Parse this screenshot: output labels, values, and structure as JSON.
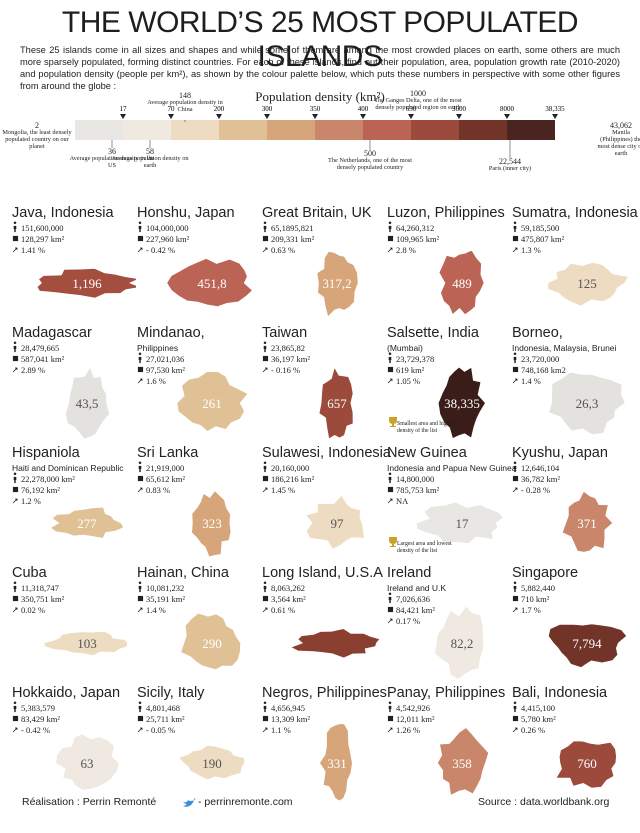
{
  "header": {
    "title": "THE WORLD’S 25 MOST POPULATED ISLANDS",
    "intro": "These 25 islands come in all sizes and shapes and while some of them are among the most crowded places on earth, some others are much more sparsely populated, forming distinct countries. For each of these islands, find out their population, area, population growth rate (2010-2020) and population density (people per km²), as shown by the colour palette below, which puts these numbers in perspective with some other figures from around the globe :"
  },
  "scale": {
    "title": "Population density (km²)",
    "ticks": [
      "17",
      "70",
      "200",
      "300",
      "350",
      "400",
      "650",
      "3000",
      "8000",
      "38,335"
    ],
    "colors": [
      "#e9e7e4",
      "#efe9e1",
      "#eedcc2",
      "#e0c095",
      "#d6a67a",
      "#c9866a",
      "#bb6456",
      "#9c4a3c",
      "#723428",
      "#4a2420"
    ],
    "annotations": [
      {
        "value": "2",
        "text": "Mongolia, the least densely populated country on our planet"
      },
      {
        "value": "148",
        "text": "Average population density in China"
      },
      {
        "value": "1000",
        "text": "The Ganges Delta, one of the most densely populated region on earth"
      },
      {
        "value": "36",
        "text": "Average population density in the US"
      },
      {
        "value": "58",
        "text": "Average population density on earth"
      },
      {
        "value": "500",
        "text": "The Netherlands, one of the most densely populated country"
      },
      {
        "value": "22,544",
        "text": "Paris (inner city)"
      },
      {
        "value": "43,062",
        "text": "Manila (Philippines) the most dense city on earth"
      }
    ]
  },
  "islands": [
    {
      "name": "Java, Indonesia",
      "population": "151,600,000",
      "area": "128,297 km²",
      "growth": "1.41 %",
      "density": "1,196",
      "color": "#a44e3f"
    },
    {
      "name": "Honshu, Japan",
      "population": "104,000,000",
      "area": "227,960 km²",
      "growth": "- 0.42 %",
      "density": "451,8",
      "color": "#bb6456"
    },
    {
      "name": "Great Britain, UK",
      "population": "65,1895,821",
      "area": "209,331 km²",
      "growth": "0.63 %",
      "density": "317,2",
      "color": "#d6a67a"
    },
    {
      "name": "Luzon, Philippines",
      "population": "64,260,312",
      "area": "109,965 km²",
      "growth": "2.8 %",
      "density": "489",
      "color": "#bb6456"
    },
    {
      "name": "Sumatra, Indonesia",
      "population": "59,185,500",
      "area": "475,807 km²",
      "growth": "1.3 %",
      "density": "125",
      "color": "#eedcc2"
    },
    {
      "name": "Madagascar",
      "population": "28,479,665",
      "area": "587,041 km²",
      "growth": "2.89 %",
      "density": "43,5",
      "color": "#e4e2df"
    },
    {
      "name": "Mindanao,",
      "subtitle": "Philippines",
      "population": "27,021,036",
      "area": "97,530 km²",
      "growth": "1.6 %",
      "density": "261",
      "color": "#e0c095"
    },
    {
      "name": "Taiwan",
      "population": "23,865,82",
      "area": "36,197 km²",
      "growth": "- 0.16 %",
      "density": "657",
      "color": "#9c4a3c"
    },
    {
      "name": "Salsette, India",
      "subtitle": "(Mumbai)",
      "population": "23,729,378",
      "area": "619 km²",
      "growth": "1.05 %",
      "density": "38,335",
      "note": "Smallest area and highest density of the list",
      "color": "#3a1c18"
    },
    {
      "name": "Borneo,",
      "subtitle": "Indonesia, Malaysia, Brunei",
      "population": "23,720,000",
      "area": "748,168 km2",
      "growth": "1.4 %",
      "density": "26,3",
      "color": "#e4e2df"
    },
    {
      "name": "Hispaniola",
      "subtitle": "Haiti and Dominican Republic",
      "population": "22,278,000 km²",
      "area": "76,192 km²",
      "growth": "1.2 %",
      "density": "277",
      "color": "#e0c095"
    },
    {
      "name": "Sri Lanka",
      "population": "21,919,000",
      "area": "65,612 km²",
      "growth": "0.83 %",
      "density": "323",
      "color": "#d6a67a"
    },
    {
      "name": "Sulawesi, Indonesia",
      "population": "20,160,000",
      "area": "186,216 km²",
      "growth": "1.45 %",
      "density": "97",
      "color": "#eedcc2"
    },
    {
      "name": "New Guinea",
      "subtitle": "Indonesia and Papua New Guinea",
      "population": "14,800,000",
      "area": "785,753 km²",
      "growth": "NA",
      "density": "17",
      "note": "Largest area and lowest density of the list",
      "color": "#e9e7e4"
    },
    {
      "name": "Kyushu, Japan",
      "population": "12,646,104",
      "area": "36,782 km²",
      "growth": "- 0.28 %",
      "density": "371",
      "color": "#c9866a"
    },
    {
      "name": "Cuba",
      "population": "11,318,747",
      "area": "350,751 km²",
      "growth": "0.02 %",
      "density": "103",
      "color": "#eedcc2"
    },
    {
      "name": "Hainan, China",
      "population": "10,081,232",
      "area": "35,191 km²",
      "growth": "1.4 %",
      "density": "290",
      "color": "#e0c095"
    },
    {
      "name": "Long Island, U.S.A",
      "population": "8,063,262",
      "area": "3,564 km²",
      "growth": "0.61 %",
      "color": "#8a3f30"
    },
    {
      "name": "Ireland",
      "subtitle": "Ireland and U.K",
      "population": "7,026,636",
      "area": "84,421 km²",
      "growth": "0.17 %",
      "density": "82,2",
      "color": "#efe9e1"
    },
    {
      "name": "Singapore",
      "population": "5,882,440",
      "area": "710 km²",
      "growth": "1.7 %",
      "density": "7,794",
      "color": "#723428"
    },
    {
      "name": "Hokkaido, Japan",
      "population": "5,383,579",
      "area": "83,429 km²",
      "growth": "- 0.42 %",
      "density": "63",
      "color": "#efe9e1"
    },
    {
      "name": "Sicily, Italy",
      "population": "4,801,468",
      "area": "25,711 km²",
      "growth": "- 0.05 %",
      "density": "190",
      "color": "#eedcc2"
    },
    {
      "name": "Negros, Philippines",
      "population": "4,656,945",
      "area": "13,309 km²",
      "growth": "1.1 %",
      "density": "331",
      "color": "#d6a67a"
    },
    {
      "name": "Panay, Philippines",
      "population": "4,542,926",
      "area": "12,011 km²",
      "growth": "1.26 %",
      "density": "358",
      "color": "#c9866a"
    },
    {
      "name": "Bali, Indonesia",
      "population": "4,415,100",
      "area": "5,780 km²",
      "growth": "0.26 %",
      "density": "760",
      "color": "#9c4a3c"
    }
  ],
  "footer": {
    "author": "Réalisation : Perrin Remonté",
    "site": "- perrinremonte.com",
    "source": "Source : data.worldbank.org"
  }
}
